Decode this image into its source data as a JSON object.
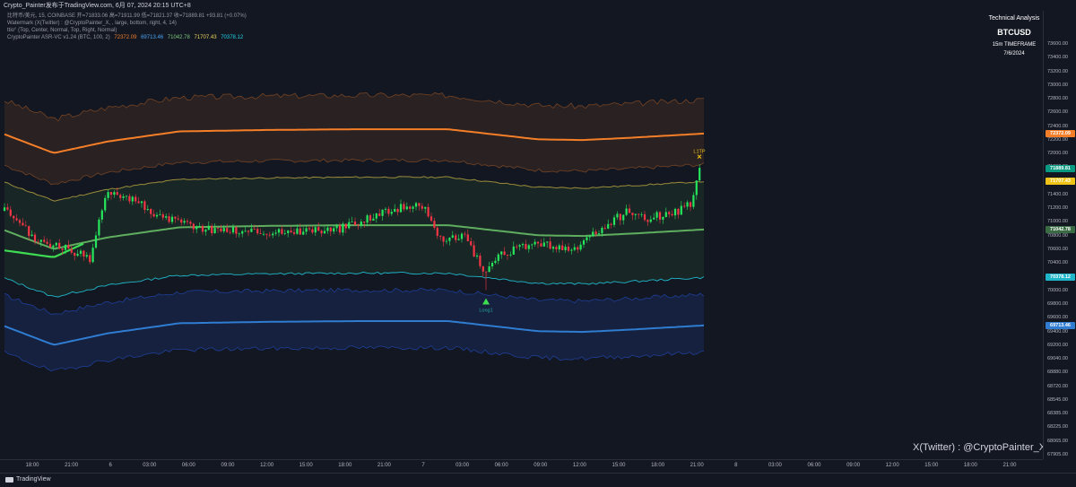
{
  "header": {
    "title": "Crypto_Painter发布于TradingView.com, 6月 07, 2024 20:15 UTC+8"
  },
  "legend": {
    "symbol_line": "比特币/美元, 15, COINBASE  开=71833.06  高=71911.99  低=71821.37  收=71889.81  +93.81 (+0.07%)",
    "watermark_line": "Watermark (X(Twitter) : @CryptoPainter_X, , large, bottom, right, 4, 14)",
    "ttio_line": "ttio° (Top, Center, Normal, Top, Right, Normal)",
    "indicator_name": "CryptoPainter ASR-VC v1.24 (BTC, 100, 2)",
    "indicator_values": [
      {
        "value": "72372.09",
        "color": "#f57f28"
      },
      {
        "value": "69713.46",
        "color": "#4aa3f0"
      },
      {
        "value": "71042.78",
        "color": "#7ec97e"
      },
      {
        "value": "71707.43",
        "color": "#f0d75a"
      },
      {
        "value": "70378.12",
        "color": "#21d4e6"
      }
    ]
  },
  "tech_box": {
    "title": "Technical Analysis",
    "symbol": "BTCUSD",
    "timeframe": "15m TIMEFRAME",
    "date": "7/6/2024"
  },
  "price_axis": {
    "ticks": [
      "73600.00",
      "73400.00",
      "73200.00",
      "73000.00",
      "72800.00",
      "72600.00",
      "72400.00",
      "72200.00",
      "72000.00",
      "71800.00",
      "71600.00",
      "71400.00",
      "71200.00",
      "71000.00",
      "70800.00",
      "70600.00",
      "70400.00",
      "70200.00",
      "70000.00",
      "69800.00",
      "69600.00",
      "69400.00",
      "69200.00",
      "69040.00",
      "68880.00",
      "68720.00",
      "68545.00",
      "68385.00",
      "68225.00",
      "68065.00",
      "67905.00"
    ],
    "badges": [
      {
        "label": "72372.09",
        "value": 72372.09,
        "color": "#f57f28"
      },
      {
        "label": "71889.81",
        "value": 71889.81,
        "color": "#089981"
      },
      {
        "label": "71707.43",
        "value": 71707.43,
        "color": "#f0c417"
      },
      {
        "label": "71042.78",
        "value": 71042.78,
        "color": "#3b6b44"
      },
      {
        "label": "70378.12",
        "value": 70378.12,
        "color": "#1fb6c9"
      },
      {
        "label": "69713.46",
        "value": 69713.46,
        "color": "#2f7cd1"
      }
    ]
  },
  "time_axis": {
    "ticks": [
      "18:00",
      "21:00",
      "6",
      "03:00",
      "06:00",
      "09:00",
      "12:00",
      "15:00",
      "18:00",
      "21:00",
      "7",
      "03:00",
      "06:00",
      "09:00",
      "12:00",
      "15:00",
      "18:00",
      "21:00",
      "8",
      "03:00",
      "06:00",
      "09:00",
      "12:00",
      "15:00",
      "18:00",
      "21:00"
    ]
  },
  "chart_data": {
    "type": "candlestick",
    "ylim": [
      67905,
      73700
    ],
    "annotations": [
      {
        "text": "Long1",
        "x": 38,
        "y": 70000,
        "color": "#26a69a"
      },
      {
        "text": "L1TP",
        "x": 71,
        "y": 71950,
        "color": "#f0c417"
      }
    ]
  },
  "watermark": {
    "text": "X(Twitter) : @CryptoPainter_X"
  },
  "footer": {
    "logo_text": "TradingView"
  }
}
